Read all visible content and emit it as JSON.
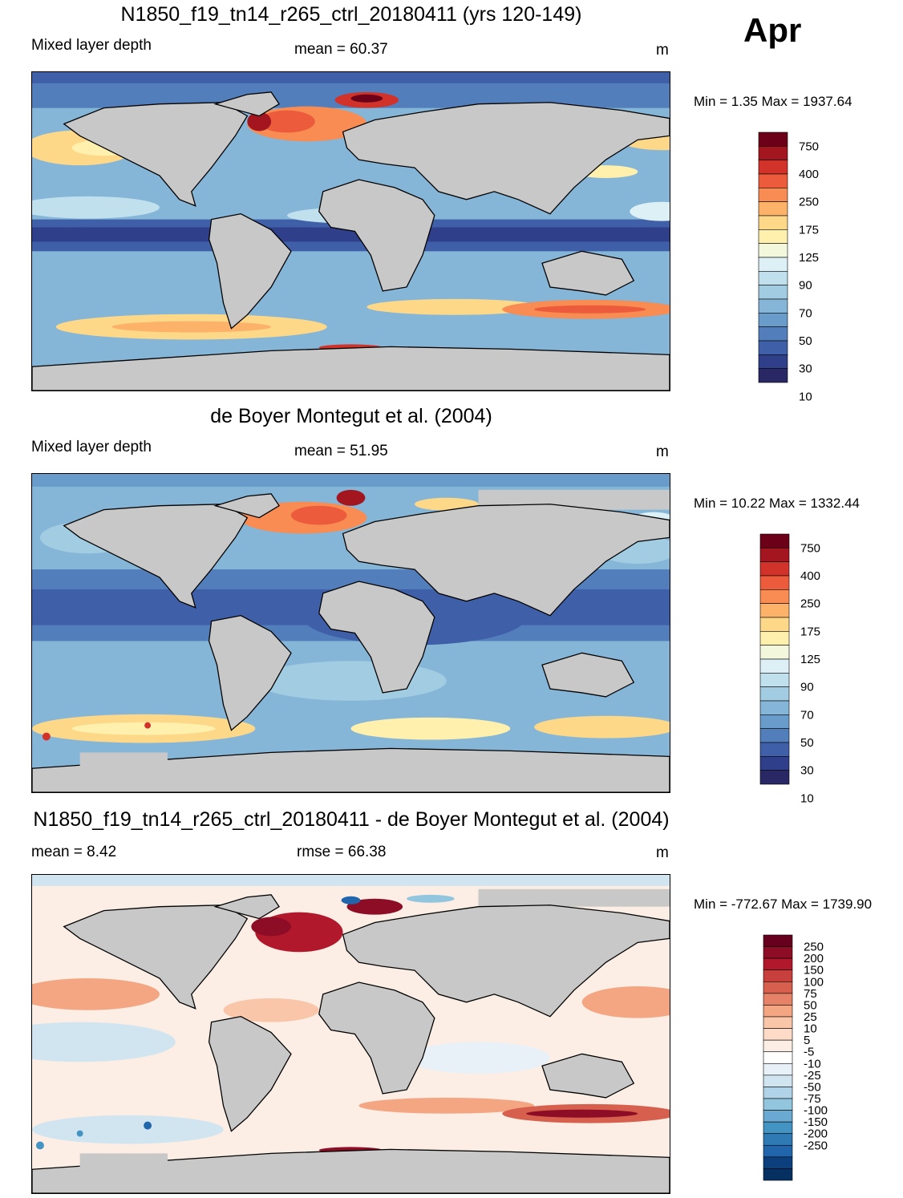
{
  "month": "Apr",
  "panels": [
    {
      "title": "N1850_f19_tn14_r265_ctrl_20180411 (yrs 120-149)",
      "left_label": "Mixed layer depth",
      "center_label": "mean =  60.37",
      "units": "m",
      "minmax": "Min =   1.35 Max = 1937.64"
    },
    {
      "title": "de Boyer Montegut et al. (2004)",
      "left_label": "Mixed layer depth",
      "center_label": "mean =  51.95",
      "units": "m",
      "minmax": "Min =  10.22 Max = 1332.44"
    },
    {
      "title": "N1850_f19_tn14_r265_ctrl_20180411 - de Boyer Montegut et al. (2004)",
      "left_label": "mean =   8.42",
      "center_label": "rmse =  66.38",
      "units": "m",
      "minmax": "Min = -772.67 Max = 1739.90"
    }
  ],
  "colorbar_abs": {
    "labels": [
      "750",
      "400",
      "250",
      "175",
      "125",
      "90",
      "70",
      "50",
      "30",
      "10"
    ],
    "colors": [
      "#6b0018",
      "#a3161f",
      "#d1322a",
      "#ec5b3b",
      "#f88c52",
      "#fcb268",
      "#fed889",
      "#fff0ad",
      "#f3f8dc",
      "#dcf0f5",
      "#bfe0ec",
      "#a2cce2",
      "#85b5d7",
      "#6a9ccb",
      "#527fbc",
      "#3f60a8",
      "#2f3f8a",
      "#292764"
    ]
  },
  "colorbar_diff": {
    "labels": [
      "250",
      "200",
      "150",
      "100",
      "75",
      "50",
      "25",
      "10",
      "5",
      "-5",
      "-10",
      "-25",
      "-50",
      "-75",
      "-100",
      "-150",
      "-200",
      "-250"
    ],
    "colors": [
      "#67001f",
      "#8c0d25",
      "#b2182b",
      "#c8403d",
      "#d6604d",
      "#e58267",
      "#f4a582",
      "#f9c6a9",
      "#fddbc7",
      "#fdeee5",
      "#ffffff",
      "#e8f1f8",
      "#d1e5f0",
      "#b0d3e7",
      "#92c5de",
      "#6aa9d1",
      "#4393c3",
      "#2f79b5",
      "#2166ac",
      "#0b3f7e",
      "#053061"
    ]
  }
}
